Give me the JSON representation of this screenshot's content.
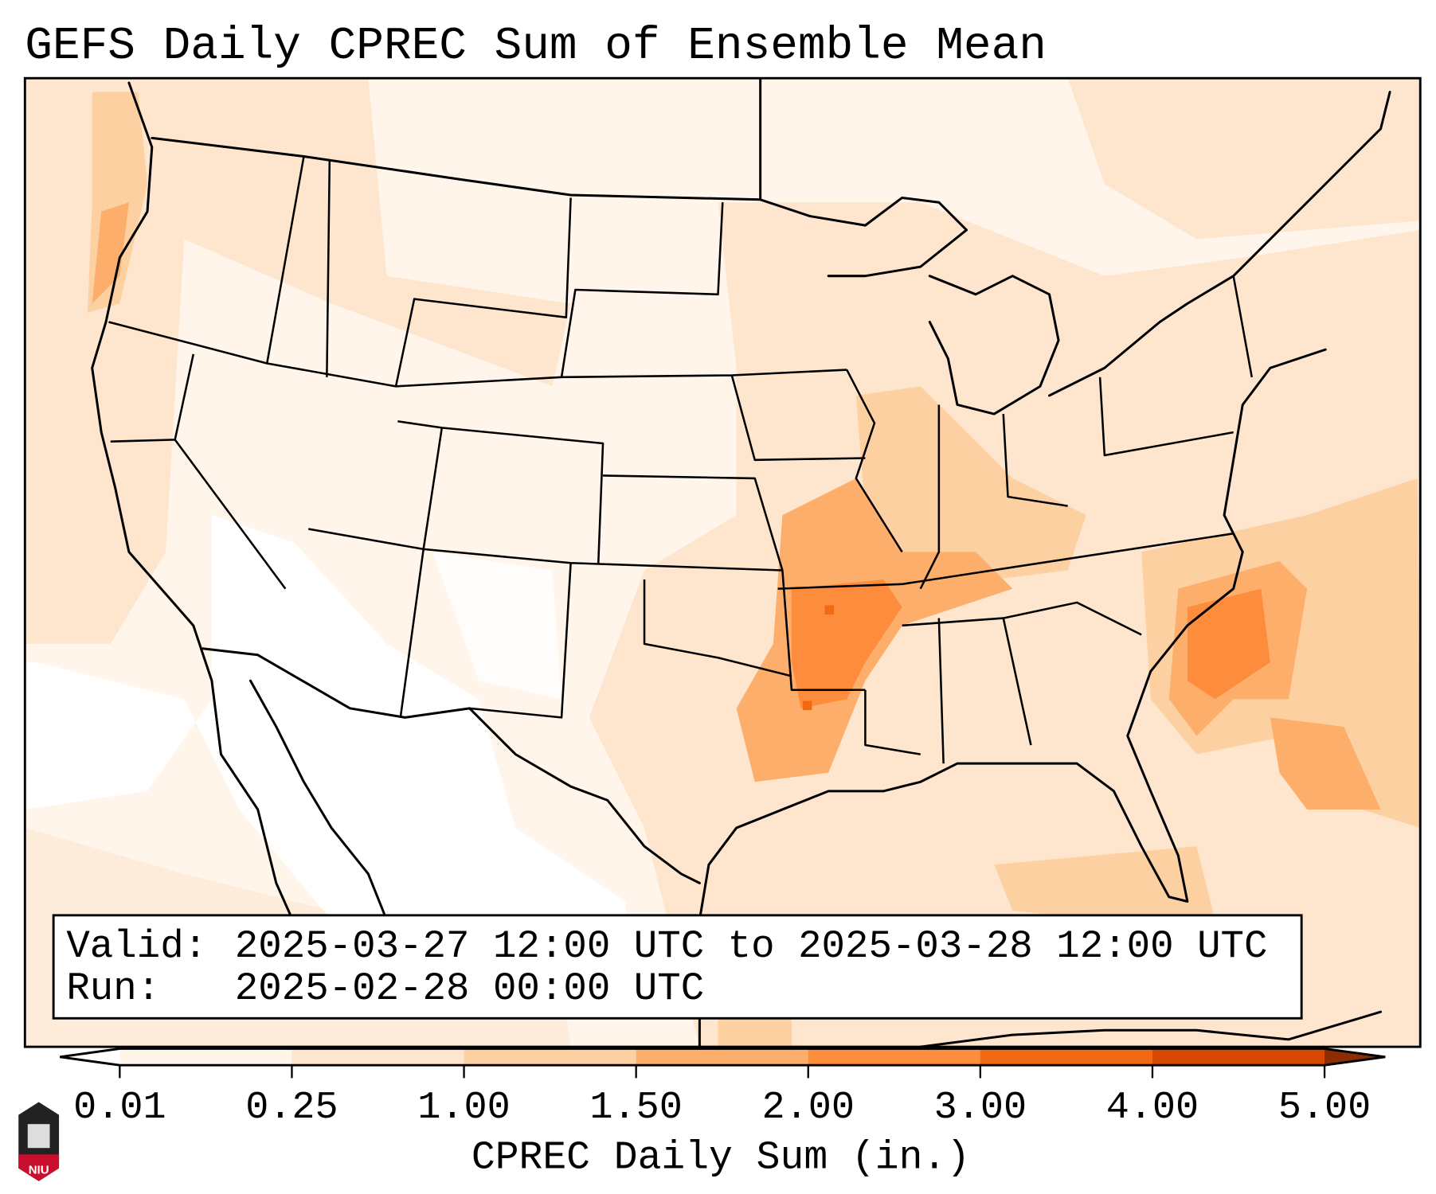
{
  "title": "GEFS Daily CPREC Sum of Ensemble Mean",
  "info_box": {
    "valid_label": "Valid:",
    "valid_value": "2025-03-27 12:00 UTC to 2025-03-28 12:00 UTC",
    "run_label": "Run:",
    "run_value": "2025-02-28 00:00 UTC"
  },
  "colorbar": {
    "label": "CPREC Daily Sum (in.)",
    "ticks": [
      "0.01",
      "0.25",
      "1.00",
      "1.50",
      "2.00",
      "3.00",
      "4.00",
      "5.00"
    ],
    "colors": [
      "#fff5eb",
      "#fee6ce",
      "#fdd0a2",
      "#fdae6b",
      "#fd8d3c",
      "#f16913",
      "#d94801",
      "#8c2d04"
    ],
    "under_color": "#ffffff",
    "over_color": "#8c2d04"
  },
  "logo": {
    "text": "NIU"
  }
}
